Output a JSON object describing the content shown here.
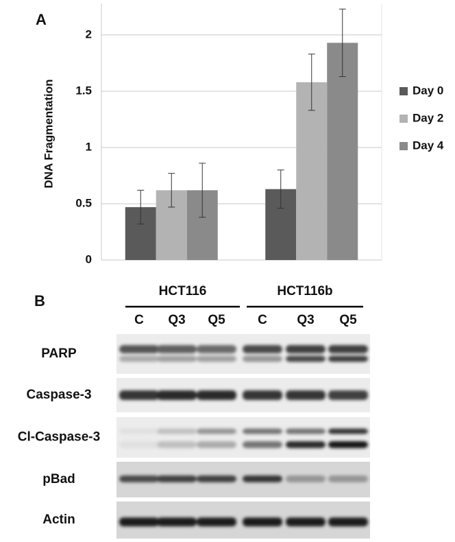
{
  "chart_data": {
    "type": "bar",
    "panel_label": "A",
    "y_label": "DNA Fragmentation",
    "categories": [
      null,
      null
    ],
    "series": [
      {
        "name": "Day 0",
        "color": "#5a5a5a",
        "values": [
          0.47,
          0.63
        ],
        "errors": [
          0.15,
          0.17
        ]
      },
      {
        "name": "Day 2",
        "color": "#b3b3b3",
        "values": [
          0.62,
          1.58
        ],
        "errors": [
          0.15,
          0.25
        ]
      },
      {
        "name": "Day 4",
        "color": "#8a8a8a",
        "values": [
          0.62,
          1.93
        ],
        "errors": [
          0.24,
          0.3
        ]
      }
    ],
    "ylim": [
      0,
      2.28
    ],
    "yticks": [
      0,
      0.5,
      1,
      1.5,
      2
    ],
    "grid": true,
    "legend": "right"
  },
  "blot": {
    "panel_label": "B",
    "groups": [
      "HCT116",
      "HCT116b"
    ],
    "lanes": [
      "C",
      "Q3",
      "Q5",
      "C",
      "Q3",
      "Q5"
    ],
    "rows": [
      "PARP",
      "Caspase-3",
      "Cl-Caspase-3",
      "pBad",
      "Actin"
    ]
  }
}
